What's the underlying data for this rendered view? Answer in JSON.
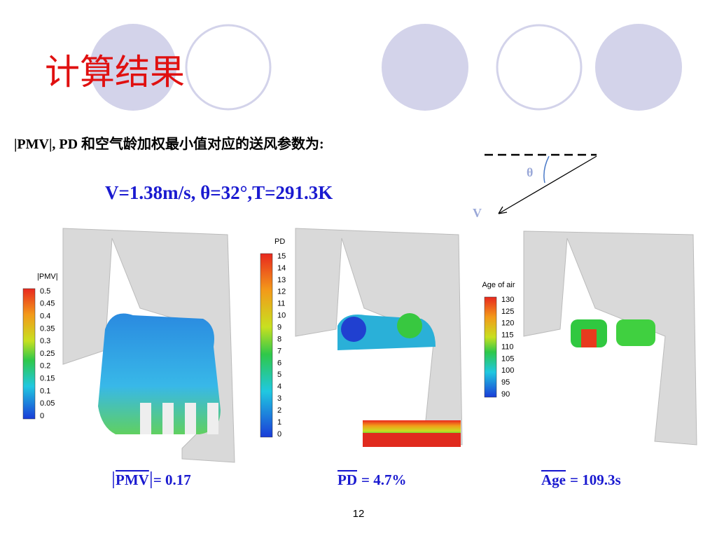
{
  "title": "计算结果",
  "subtitle": "|PMV|, PD 和空气龄加权最小值对应的送风参数为:",
  "parameters": "V=1.38m/s, θ=32°,T=291.3K",
  "diagram": {
    "angle_label": "θ",
    "velocity_label": "V"
  },
  "panels": [
    {
      "legend_title": "|PMV|",
      "ticks": [
        "0.5",
        "0.45",
        "0.4",
        "0.35",
        "0.3",
        "0.25",
        "0.2",
        "0.15",
        "0.1",
        "0.05",
        "0"
      ],
      "caption": {
        "symbol": "PMV",
        "value": "= 0.17"
      }
    },
    {
      "legend_title": "PD",
      "ticks": [
        "15",
        "14",
        "13",
        "12",
        "11",
        "10",
        "9",
        "8",
        "7",
        "6",
        "5",
        "4",
        "3",
        "2",
        "1",
        "0"
      ],
      "caption": {
        "symbol": "PD",
        "value": "= 4.7%"
      }
    },
    {
      "legend_title": "Age of air",
      "ticks": [
        "130",
        "125",
        "120",
        "115",
        "110",
        "105",
        "100",
        "95",
        "90"
      ],
      "caption": {
        "symbol": "Age",
        "value": "= 109.3s"
      }
    }
  ],
  "page_number": "12"
}
